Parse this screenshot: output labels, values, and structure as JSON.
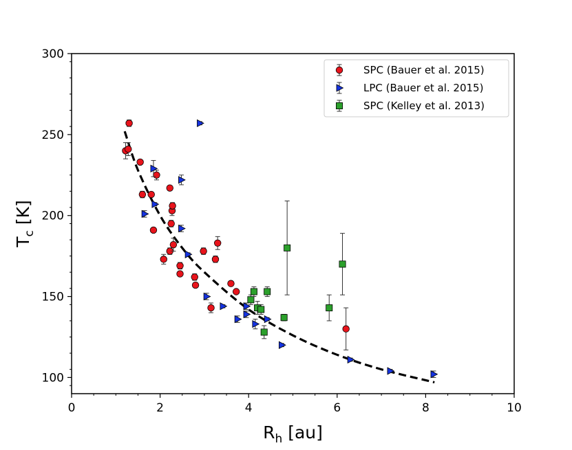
{
  "chart_data": {
    "type": "scatter",
    "xlabel": "R",
    "xlabel_sub": "h",
    "xlabel_unit": " [au]",
    "ylabel": "T",
    "ylabel_sub": "c",
    "ylabel_unit": " [K]",
    "xlim": [
      0,
      10
    ],
    "ylim": [
      90,
      300
    ],
    "xticks": [
      0,
      2,
      4,
      6,
      8,
      10
    ],
    "yticks": [
      100,
      150,
      200,
      250,
      300
    ],
    "grid": false,
    "legend_position": "top-right",
    "series": [
      {
        "name": "SPC (Bauer et al. 2015)",
        "marker": "circle",
        "color": "#e8141c",
        "points": [
          {
            "x": 1.22,
            "y": 240,
            "err": 5
          },
          {
            "x": 1.28,
            "y": 241,
            "err": 4
          },
          {
            "x": 1.3,
            "y": 257,
            "err": 2
          },
          {
            "x": 1.55,
            "y": 233,
            "err": 1
          },
          {
            "x": 1.6,
            "y": 213,
            "err": 2
          },
          {
            "x": 1.8,
            "y": 213,
            "err": 1
          },
          {
            "x": 1.85,
            "y": 191,
            "err": 1
          },
          {
            "x": 1.92,
            "y": 225,
            "err": 3
          },
          {
            "x": 2.08,
            "y": 173,
            "err": 3
          },
          {
            "x": 2.22,
            "y": 217,
            "err": 1
          },
          {
            "x": 2.22,
            "y": 178,
            "err": 2
          },
          {
            "x": 2.25,
            "y": 195,
            "err": 2
          },
          {
            "x": 2.27,
            "y": 203,
            "err": 3
          },
          {
            "x": 2.28,
            "y": 206,
            "err": 2
          },
          {
            "x": 2.3,
            "y": 182,
            "err": 4
          },
          {
            "x": 2.45,
            "y": 169,
            "err": 2
          },
          {
            "x": 2.45,
            "y": 164,
            "err": 1
          },
          {
            "x": 2.78,
            "y": 162,
            "err": 2
          },
          {
            "x": 2.8,
            "y": 157,
            "err": 1
          },
          {
            "x": 2.98,
            "y": 178,
            "err": 2
          },
          {
            "x": 3.15,
            "y": 143,
            "err": 3
          },
          {
            "x": 3.25,
            "y": 173,
            "err": 2
          },
          {
            "x": 3.3,
            "y": 183,
            "err": 4
          },
          {
            "x": 3.6,
            "y": 158,
            "err": 1
          },
          {
            "x": 3.72,
            "y": 153,
            "err": 1
          },
          {
            "x": 6.2,
            "y": 130,
            "err": 13
          }
        ]
      },
      {
        "name": "LPC (Bauer et al. 2015)",
        "marker": "triangle-right",
        "color": "#1533e0",
        "points": [
          {
            "x": 1.85,
            "y": 229,
            "err": 5
          },
          {
            "x": 1.88,
            "y": 207,
            "err": 1
          },
          {
            "x": 1.65,
            "y": 201,
            "err": 2
          },
          {
            "x": 2.48,
            "y": 222,
            "err": 3
          },
          {
            "x": 2.48,
            "y": 192,
            "err": 2
          },
          {
            "x": 2.63,
            "y": 176,
            "err": 1
          },
          {
            "x": 2.9,
            "y": 257,
            "err": 1
          },
          {
            "x": 3.05,
            "y": 150,
            "err": 2
          },
          {
            "x": 3.42,
            "y": 144,
            "err": 1
          },
          {
            "x": 3.75,
            "y": 136,
            "err": 2
          },
          {
            "x": 3.95,
            "y": 144,
            "err": 2
          },
          {
            "x": 3.95,
            "y": 139,
            "err": 2
          },
          {
            "x": 4.15,
            "y": 133,
            "err": 3
          },
          {
            "x": 4.42,
            "y": 136,
            "err": 1
          },
          {
            "x": 4.75,
            "y": 120,
            "err": 1
          },
          {
            "x": 6.3,
            "y": 111,
            "err": 1
          },
          {
            "x": 7.2,
            "y": 104,
            "err": 1
          },
          {
            "x": 8.18,
            "y": 102,
            "err": 2
          }
        ]
      },
      {
        "name": "SPC (Kelley et al. 2013)",
        "marker": "square",
        "color": "#2ca02c",
        "points": [
          {
            "x": 4.05,
            "y": 148,
            "err": 3
          },
          {
            "x": 4.12,
            "y": 153,
            "err": 3
          },
          {
            "x": 4.2,
            "y": 143,
            "err": 4
          },
          {
            "x": 4.28,
            "y": 142,
            "err": 3
          },
          {
            "x": 4.35,
            "y": 128,
            "err": 4
          },
          {
            "x": 4.42,
            "y": 153,
            "err": 3
          },
          {
            "x": 4.8,
            "y": 137,
            "err": 2
          },
          {
            "x": 4.87,
            "y": 180,
            "err": 29
          },
          {
            "x": 5.82,
            "y": 143,
            "err": 8
          },
          {
            "x": 6.12,
            "y": 170,
            "err": 19
          }
        ]
      }
    ],
    "fit": {
      "style": "dashed",
      "color": "#000000",
      "points": [
        [
          1.2,
          252
        ],
        [
          1.5,
          228
        ],
        [
          2.0,
          200
        ],
        [
          2.5,
          180
        ],
        [
          3.0,
          165
        ],
        [
          4.0,
          142
        ],
        [
          5.0,
          126
        ],
        [
          6.0,
          114
        ],
        [
          7.0,
          105
        ],
        [
          8.2,
          97
        ]
      ]
    }
  }
}
